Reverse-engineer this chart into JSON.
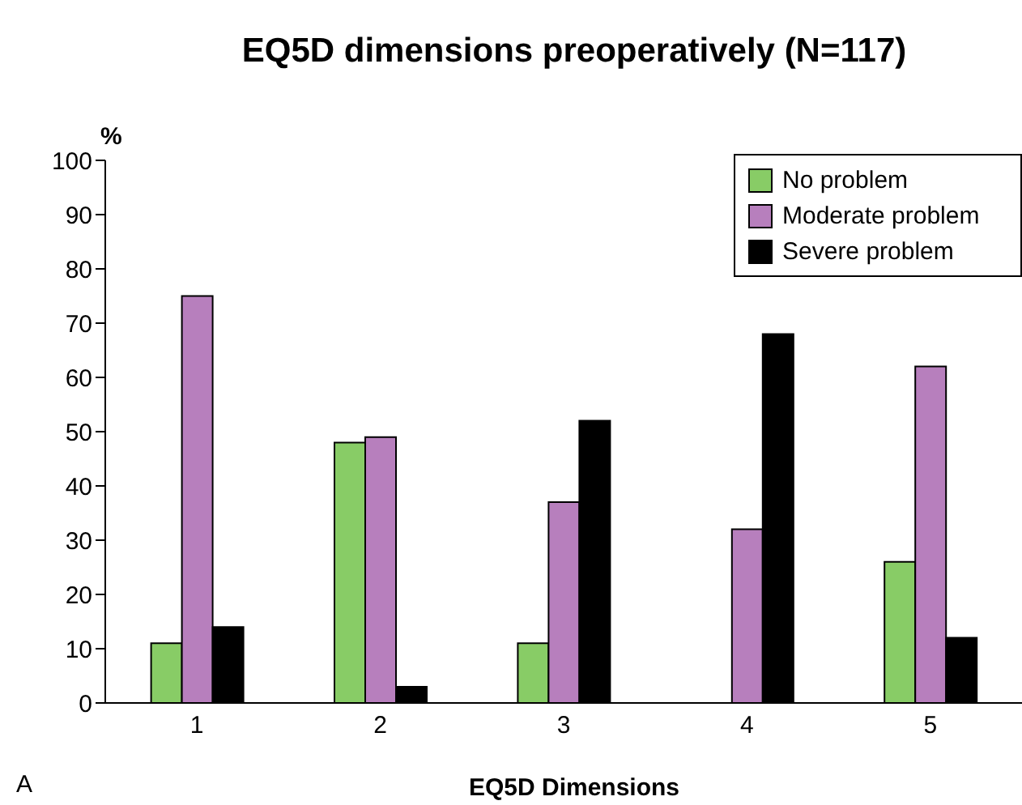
{
  "chart_data": {
    "type": "bar",
    "title": "EQ5D dimensions preoperatively (N=117)",
    "xlabel": "EQ5D Dimensions",
    "ylabel": "%",
    "categories": [
      "1",
      "2",
      "3",
      "4",
      "5"
    ],
    "series": [
      {
        "name": "No problem",
        "color": "#88cc66",
        "values": [
          11,
          48,
          11,
          0,
          26
        ]
      },
      {
        "name": "Moderate problem",
        "color": "#b77fbd",
        "values": [
          75,
          49,
          37,
          32,
          62
        ]
      },
      {
        "name": "Severe problem",
        "color": "#000000",
        "values": [
          14,
          3,
          52,
          68,
          12
        ]
      }
    ],
    "ylim": [
      0,
      100
    ],
    "yticks": [
      0,
      10,
      20,
      30,
      40,
      50,
      60,
      70,
      80,
      90,
      100
    ],
    "legend": "top right",
    "annotations": [
      "A"
    ]
  }
}
